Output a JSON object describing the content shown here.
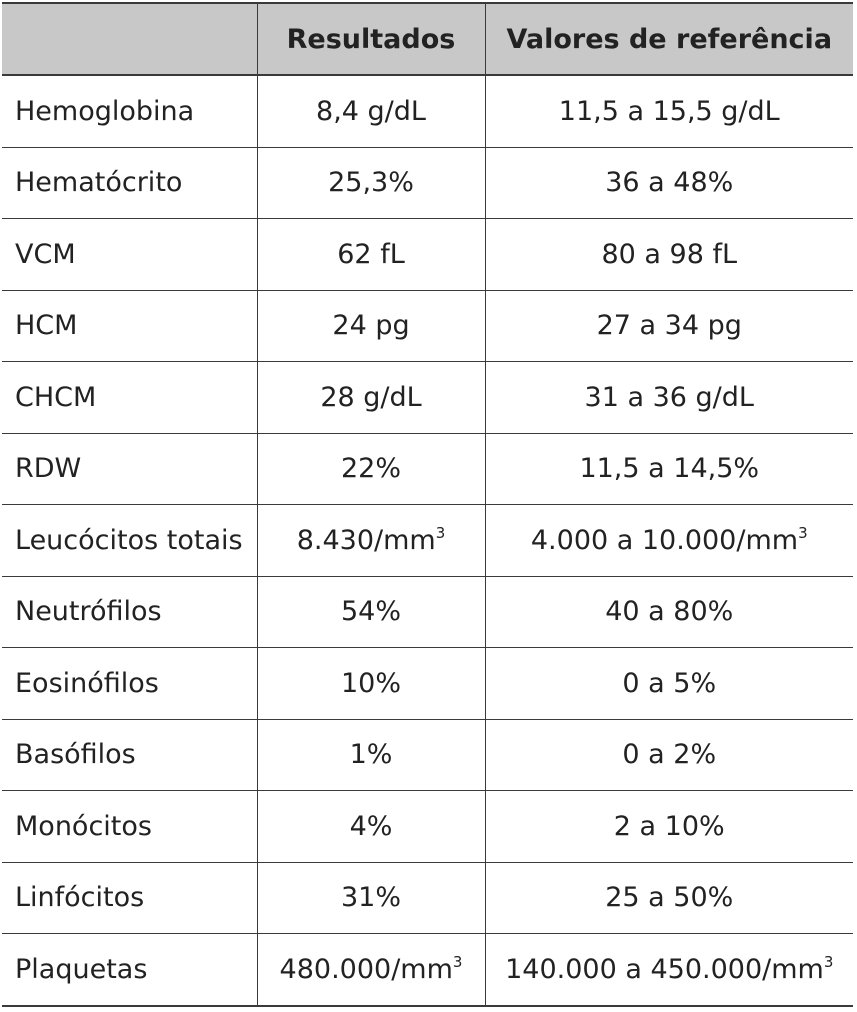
{
  "table": {
    "headers": [
      "",
      "Resultados",
      "Valores de referência"
    ],
    "rows": [
      {
        "name": "Hemoglobina",
        "result": "8,4 g/dL",
        "reference": "11,5 a 15,5 g/dL"
      },
      {
        "name": "Hematócrito",
        "result": "25,3%",
        "reference": "36 a 48%"
      },
      {
        "name": "VCM",
        "result": "62 fL",
        "reference": "80 a 98 fL"
      },
      {
        "name": "HCM",
        "result": "24 pg",
        "reference": "27 a 34 pg"
      },
      {
        "name": "CHCM",
        "result": "28 g/dL",
        "reference": "31 a 36 g/dL"
      },
      {
        "name": "RDW",
        "result": "22%",
        "reference": "11,5 a 14,5%"
      },
      {
        "name": "Leucócitos totais",
        "result": "8.430/mm",
        "result_sup": "3",
        "reference": "4.000 a 10.000/mm",
        "reference_sup": "3"
      },
      {
        "name": "Neutrófilos",
        "result": "54%",
        "reference": "40 a 80%"
      },
      {
        "name": "Eosinófilos",
        "result": "10%",
        "reference": "0 a 5%"
      },
      {
        "name": "Basófilos",
        "result": "1%",
        "reference": "0 a 2%"
      },
      {
        "name": "Monócitos",
        "result": "4%",
        "reference": "2 a 10%"
      },
      {
        "name": "Linfócitos",
        "result": "31%",
        "reference": "25 a 50%"
      },
      {
        "name": "Plaquetas",
        "result": "480.000/mm",
        "result_sup": "3",
        "reference": "140.000 a 450.000/mm",
        "reference_sup": "3"
      }
    ]
  },
  "colors": {
    "header_background": "#c8c8c8",
    "border": "#3a3a3a",
    "text": "#222222"
  }
}
